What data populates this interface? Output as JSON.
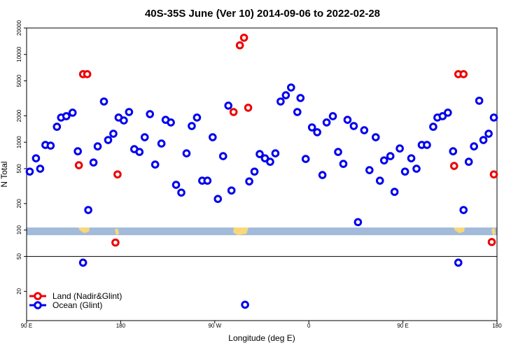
{
  "chart_data": {
    "type": "scatter",
    "title": "40S-35S June (Ver 10)   2014-09-06 to 2022-02-28",
    "x_label": "Longitude (deg E)",
    "y_label": "N Total",
    "log_y": true,
    "legend_position": "lower left",
    "xlim": [
      90,
      540
    ],
    "xticks": [
      {
        "value": 90,
        "label": "90 E"
      },
      {
        "value": 180,
        "label": "180"
      },
      {
        "value": 270,
        "label": "90 W"
      },
      {
        "value": 360,
        "label": "0"
      },
      {
        "value": 450,
        "label": "90 E"
      },
      {
        "value": 540,
        "label": "180"
      }
    ],
    "ylim": [
      9.3,
      20000
    ],
    "yticks": [
      20,
      50,
      100,
      200,
      500,
      1000,
      2000,
      5000,
      10000,
      20000
    ],
    "series": [
      {
        "name": "Land (Nadir&Glint)",
        "color": "#ee0000",
        "x": [
          140,
          144,
          148,
          175,
          177,
          288,
          294,
          298,
          302,
          499,
          503,
          508,
          535,
          537
        ],
        "values": [
          547,
          5960,
          5960,
          72,
          430,
          2210,
          12700,
          15500,
          2470,
          537,
          5960,
          5960,
          73,
          430
        ]
      },
      {
        "name": "Ocean (Glint)",
        "color": "#0000ee",
        "x": [
          93,
          99,
          103,
          108,
          113,
          119,
          123,
          128,
          134,
          139,
          144,
          149,
          154,
          158,
          164,
          168,
          173,
          178,
          183,
          188,
          193,
          198,
          203,
          208,
          213,
          219,
          223,
          228,
          233,
          238,
          243,
          248,
          253,
          258,
          263,
          268,
          273,
          278,
          283,
          286,
          299,
          303,
          308,
          313,
          318,
          323,
          328,
          333,
          338,
          343,
          349,
          352,
          357,
          363,
          368,
          373,
          377,
          383,
          388,
          393,
          397,
          403,
          407,
          413,
          418,
          424,
          428,
          432,
          438,
          442,
          447,
          452,
          458,
          463,
          468,
          473,
          479,
          483,
          488,
          493,
          498,
          503,
          508,
          513,
          518,
          523,
          527,
          532,
          537
        ],
        "values": [
          463,
          656,
          499,
          931,
          914,
          1500,
          1910,
          1980,
          2170,
          789,
          42.5,
          169,
          588,
          897,
          2910,
          1060,
          1250,
          1910,
          1770,
          2210,
          834,
          775,
          1140,
          2090,
          557,
          966,
          1800,
          1680,
          327,
          267,
          747,
          1530,
          1910,
          365,
          365,
          1140,
          226,
          694,
          2610,
          282,
          14.1,
          358,
          463,
          733,
          656,
          599,
          747,
          2910,
          3430,
          4200,
          2210,
          3190,
          645,
          1475,
          1300,
          423,
          1680,
          1980,
          775,
          567,
          1800,
          1530,
          123,
          1370,
          481,
          1140,
          365,
          621,
          694,
          272,
          849,
          463,
          656,
          499,
          931,
          931,
          1500,
          1910,
          1980,
          2170,
          789,
          42.5,
          169,
          599,
          897,
          2970,
          1060,
          1250,
          1910
        ]
      }
    ]
  }
}
